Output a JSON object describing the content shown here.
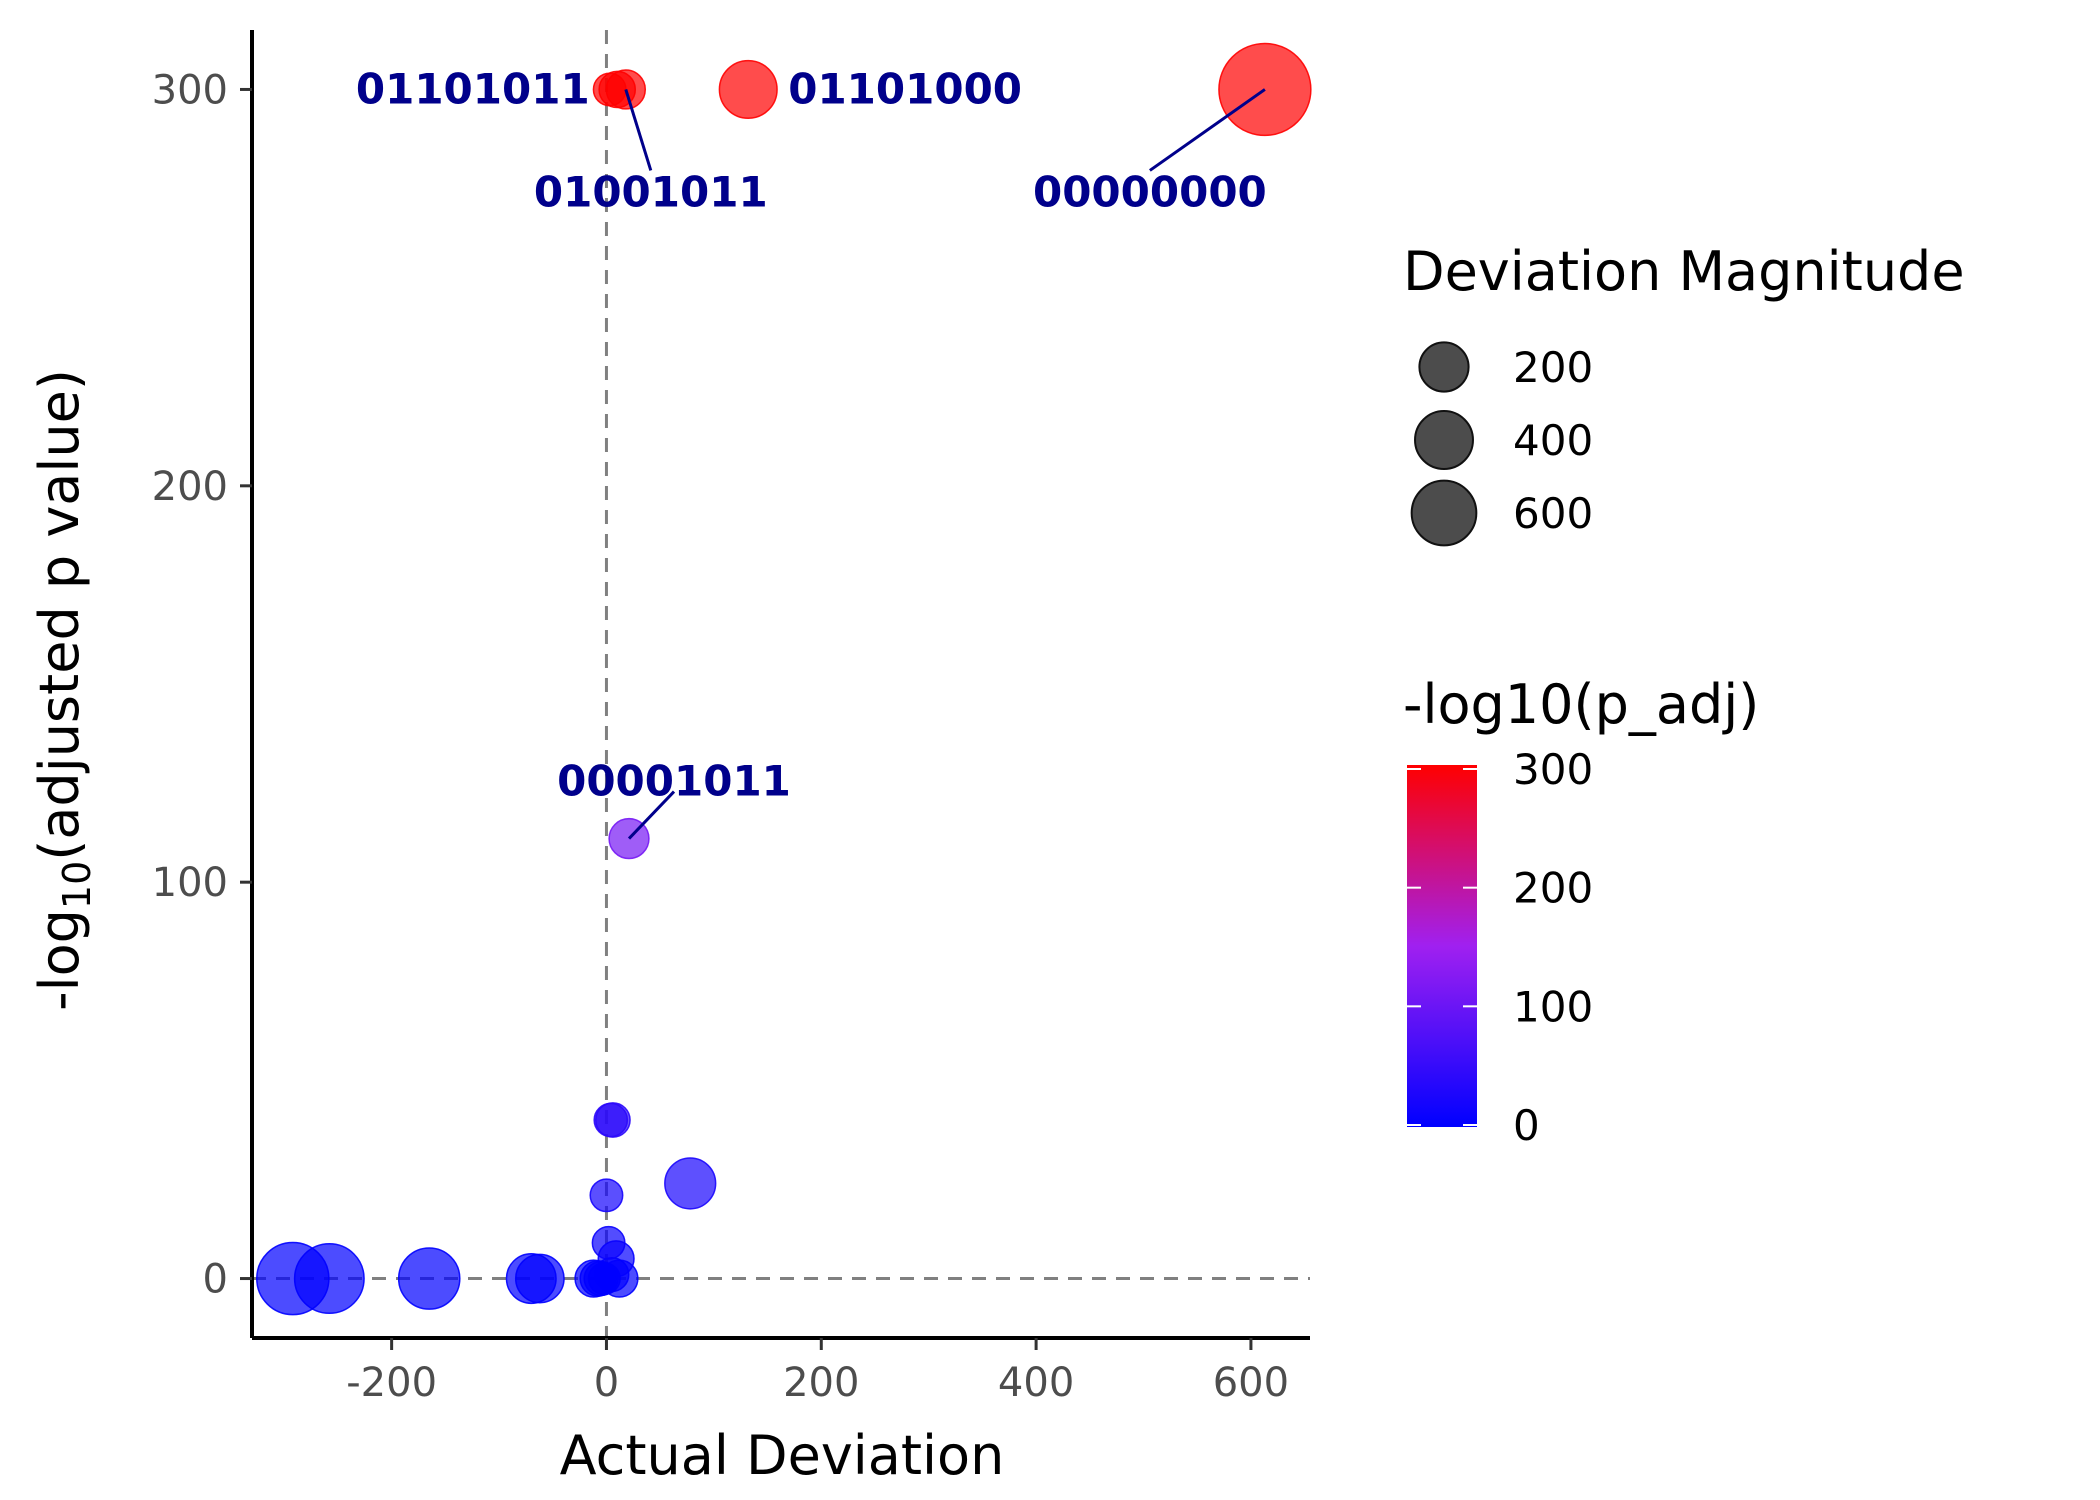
{
  "chart_data": {
    "type": "scatter",
    "xlabel": "Actual Deviation",
    "ylabel_prefix": "-log",
    "ylabel_sub": "10",
    "ylabel_suffix": "(adjusted p value)",
    "xlim": [
      -330,
      655
    ],
    "ylim": [
      -15,
      315
    ],
    "x_ticks": [
      -200,
      0,
      200,
      400,
      600
    ],
    "y_ticks": [
      0,
      100,
      200,
      300
    ],
    "vline_x": 0,
    "hline_y": 0,
    "grid": false,
    "points": [
      {
        "x": 613,
        "y": 300,
        "size": 613
      },
      {
        "x": 132,
        "y": 300,
        "size": 132
      },
      {
        "x": 3,
        "y": 300,
        "size": 3
      },
      {
        "x": 10,
        "y": 300,
        "size": 10
      },
      {
        "x": 18,
        "y": 300,
        "size": 18
      },
      {
        "x": 21,
        "y": 111,
        "size": 21
      },
      {
        "x": 4,
        "y": 40,
        "size": 4
      },
      {
        "x": 6,
        "y": 40,
        "size": 6
      },
      {
        "x": 78,
        "y": 24,
        "size": 78
      },
      {
        "x": 0,
        "y": 21,
        "size": 3
      },
      {
        "x": 2,
        "y": 9,
        "size": 3
      },
      {
        "x": 9,
        "y": 5,
        "size": 9
      },
      {
        "x": 5,
        "y": 1,
        "size": 5
      },
      {
        "x": 12,
        "y": 0,
        "size": 12
      },
      {
        "x": -2,
        "y": 0,
        "size": 2
      },
      {
        "x": -5,
        "y": 0,
        "size": 5
      },
      {
        "x": -8,
        "y": 0,
        "size": 8
      },
      {
        "x": -12,
        "y": 0,
        "size": 12
      },
      {
        "x": -62,
        "y": 0,
        "size": 62
      },
      {
        "x": -70,
        "y": 0,
        "size": 70
      },
      {
        "x": -165,
        "y": 0,
        "size": 165
      },
      {
        "x": -258,
        "y": 0,
        "size": 258
      },
      {
        "x": -292,
        "y": 0,
        "size": 292
      }
    ],
    "labels": [
      {
        "text": "01101011",
        "x": 3,
        "y": 300,
        "anchor": "end",
        "dx": -20,
        "dy": 0
      },
      {
        "text": "01101000",
        "x": 132,
        "y": 300,
        "anchor": "start",
        "dx": 40,
        "dy": 0
      },
      {
        "text": "01001011",
        "x": 18,
        "y": 300,
        "anchor": "middle",
        "dx": 25,
        "dy": 103,
        "line": true
      },
      {
        "text": "00000000",
        "x": 613,
        "y": 300,
        "anchor": "middle",
        "dx": -115,
        "dy": 103,
        "line": true
      },
      {
        "text": "00001011",
        "x": 21,
        "y": 111,
        "anchor": "middle",
        "dx": 45,
        "dy": -57,
        "line": true
      }
    ],
    "legend_size": {
      "title": "Deviation Magnitude",
      "entries": [
        {
          "label": "200",
          "value": 200
        },
        {
          "label": "400",
          "value": 400
        },
        {
          "label": "600",
          "value": 600
        }
      ]
    },
    "legend_color": {
      "title": "-log10(p_adj)",
      "ticks": [
        {
          "label": "300",
          "value": 300
        },
        {
          "label": "200",
          "value": 200
        },
        {
          "label": "100",
          "value": 100
        },
        {
          "label": "0",
          "value": 0
        }
      ],
      "low_color": "#0000FF",
      "high_color": "#FF0000"
    },
    "colors": {
      "reference_line": "#808080",
      "label_text": "#00008B",
      "legend_point": "#333333"
    }
  }
}
